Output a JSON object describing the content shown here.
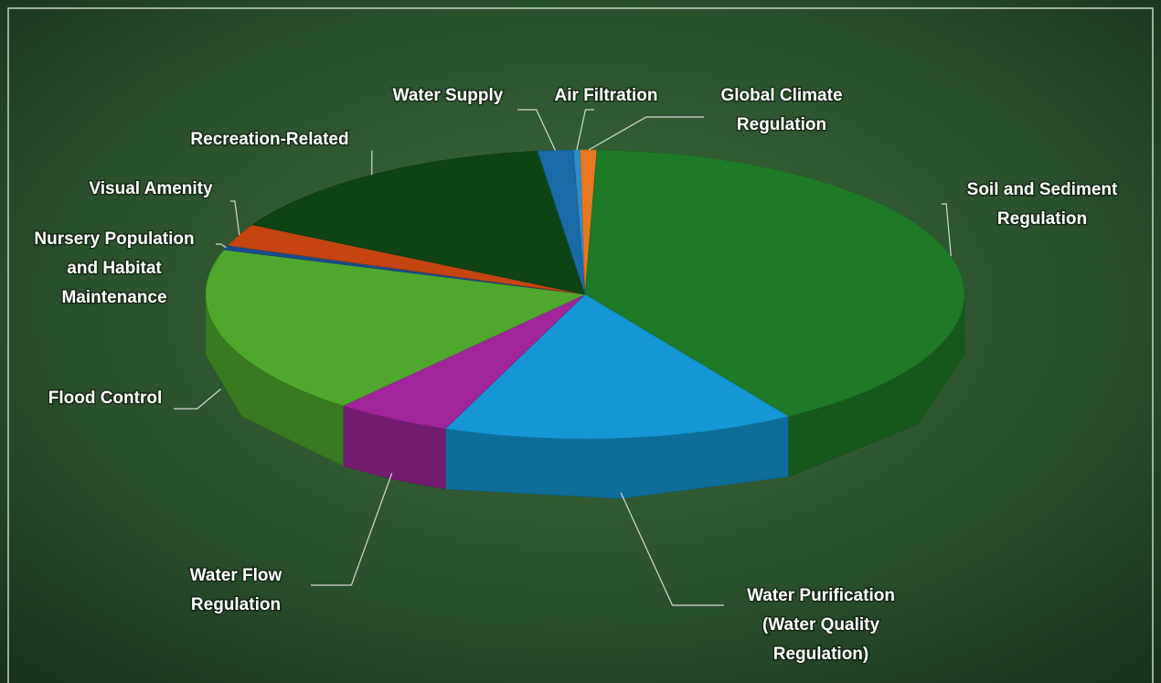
{
  "chart_data": {
    "type": "pie3d",
    "categories": [
      "Air Filtration",
      "Global Climate Regulation",
      "Soil and Sediment Regulation",
      "Water Purification (Water Quality Regulation)",
      "Water Flow Regulation",
      "Flood Control",
      "Nursery Population and Habitat Maintenance",
      "Visual Amenity",
      "Recreation-Related",
      "Water Supply"
    ],
    "values": [
      0.3,
      0.7,
      40.5,
      15,
      5,
      19,
      0.5,
      2.5,
      15,
      1.5
    ],
    "colors": [
      "#2a8fc8",
      "#e87722",
      "#1f7a27",
      "#1497d4",
      "#a0259a",
      "#4fa82d",
      "#1a4c8c",
      "#c4450f",
      "#0e4414",
      "#1a6aa8"
    ]
  }
}
